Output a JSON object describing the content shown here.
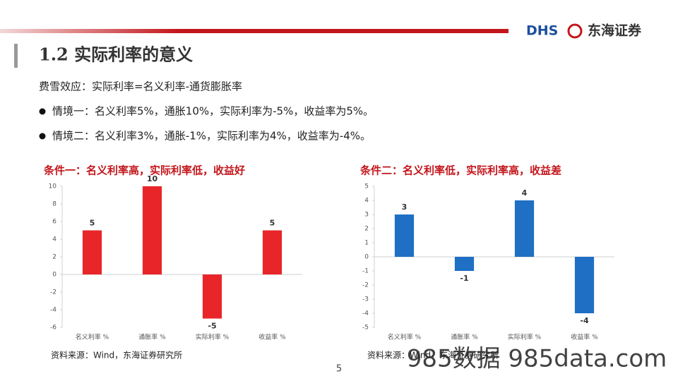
{
  "header": {
    "logo": "DHS",
    "brand": "东海证券"
  },
  "title": "1.2 实际利率的意义",
  "intro": "费雪效应：实际利率=名义利率-通货膨胀率",
  "bullets": [
    "情境一：名义利率5%，通胀10%，实际利率为-5%，收益率为5%。",
    "情境二：名义利率3%，通胀-1%，实际利率为4%，收益率为-4%。"
  ],
  "chart_data": [
    {
      "type": "bar",
      "title": "条件一：名义利率高，实际利率低，收益好",
      "categories": [
        "名义利率 %",
        "通胀率 %",
        "实际利率 %",
        "收益率 %"
      ],
      "values": [
        5,
        10,
        -5,
        5
      ],
      "color": "#e8262a",
      "ylim": [
        -6,
        10
      ],
      "yticks": [
        -6,
        -4,
        -2,
        0,
        2,
        4,
        6,
        8,
        10
      ],
      "source": "资料来源：Wind，东海证券研究所"
    },
    {
      "type": "bar",
      "title": "条件二：名义利率低，实际利率高，收益差",
      "categories": [
        "名义利率 %",
        "通胀率 %",
        "实际利率 %",
        "收益率 %"
      ],
      "values": [
        3,
        -1,
        4,
        -4
      ],
      "color": "#1f6fc5",
      "ylim": [
        -5,
        5
      ],
      "yticks": [
        -5,
        -4,
        -3,
        -2,
        -1,
        0,
        1,
        2,
        3,
        4,
        5
      ],
      "source": "资料来源：Wind，东海证券研究所"
    }
  ],
  "page_number": "5",
  "watermark": "985数据 985data.com"
}
